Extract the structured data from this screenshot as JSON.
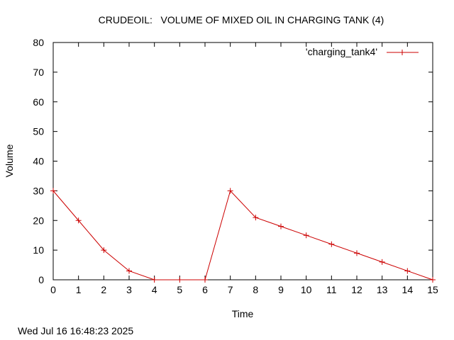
{
  "chart_data": {
    "type": "line",
    "title": "CRUDEOIL:   VOLUME OF MIXED OIL IN CHARGING TANK (4)",
    "xlabel": "Time",
    "ylabel": "Volume",
    "xlim": [
      0,
      15
    ],
    "ylim": [
      0,
      80
    ],
    "xticks": [
      0,
      1,
      2,
      3,
      4,
      5,
      6,
      7,
      8,
      9,
      10,
      11,
      12,
      13,
      14,
      15
    ],
    "yticks": [
      0,
      10,
      20,
      30,
      40,
      50,
      60,
      70,
      80
    ],
    "grid": false,
    "legend_position": "top-right",
    "series": [
      {
        "name": "'charging_tank4'",
        "color": "#cc0000",
        "marker": "plus",
        "x": [
          0,
          1,
          2,
          3,
          4,
          5,
          6,
          7,
          8,
          9,
          10,
          11,
          12,
          13,
          14,
          15
        ],
        "y": [
          30,
          20,
          10,
          3,
          0,
          0,
          0,
          30,
          21,
          18,
          15,
          12,
          9,
          6,
          3,
          0
        ]
      }
    ]
  },
  "timestamp": "Wed Jul 16 16:48:23 2025"
}
